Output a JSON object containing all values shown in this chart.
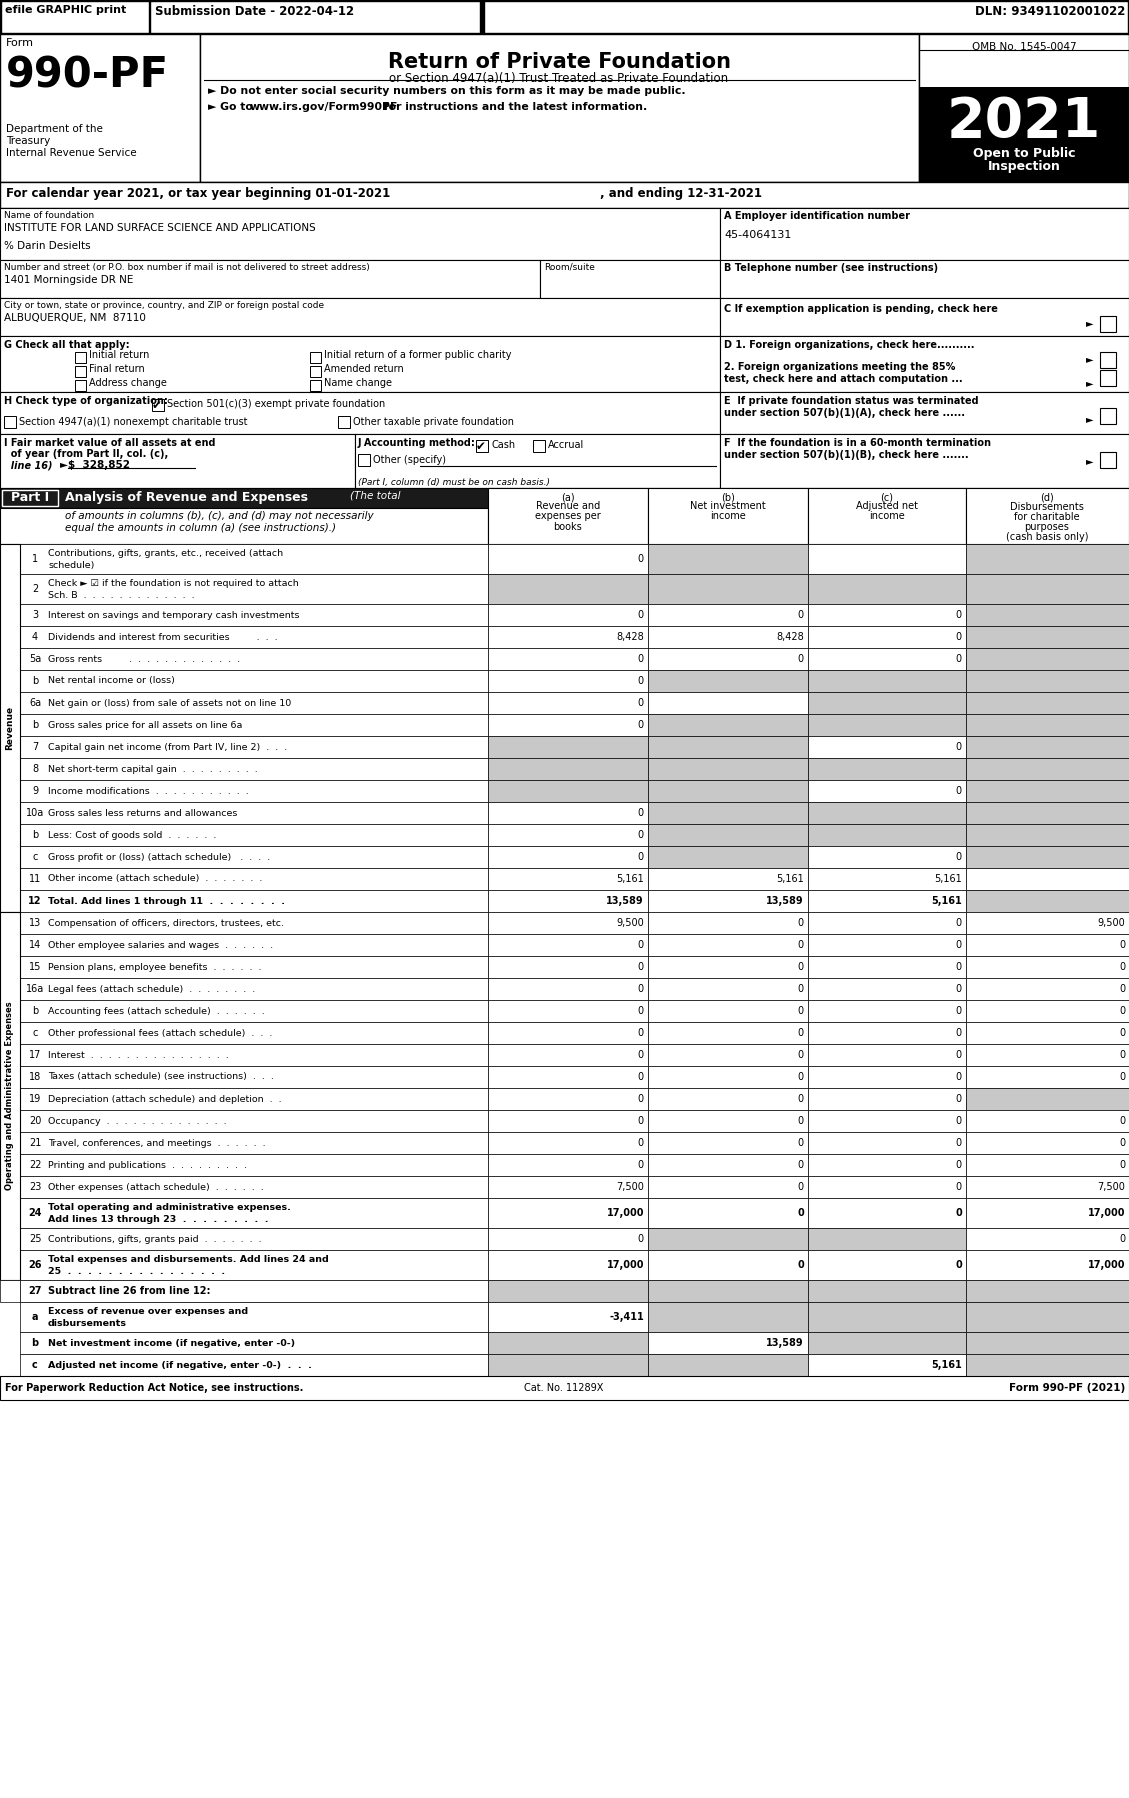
{
  "top_bar": {
    "efile": "efile GRAPHIC print",
    "submission": "Submission Date - 2022-04-12",
    "dln": "DLN: 93491102001022"
  },
  "form_header": {
    "form_label": "Form",
    "form_number": "990-PF",
    "title": "Return of Private Foundation",
    "subtitle": "or Section 4947(a)(1) Trust Treated as Private Foundation",
    "bullet1": "► Do not enter social security numbers on this form as it may be made public.",
    "bullet2_a": "► Go to ",
    "bullet2_url": "www.irs.gov/Form990PF",
    "bullet2_b": " for instructions and the latest information.",
    "dept1": "Department of the",
    "dept2": "Treasury",
    "dept3": "Internal Revenue Service",
    "omb": "OMB No. 1545-0047",
    "year": "2021",
    "open1": "Open to Public",
    "open2": "Inspection"
  },
  "cal_line": "For calendar year 2021, or tax year beginning 01-01-2021",
  "cal_line2": ", and ending 12-31-2021",
  "foundation": {
    "name_lbl": "Name of foundation",
    "name": "INSTITUTE FOR LAND SURFACE SCIENCE AND APPLICATIONS",
    "careof": "% Darin Desielts",
    "addr_lbl": "Number and street (or P.O. box number if mail is not delivered to street address)",
    "addr": "1401 Morningside DR NE",
    "room_lbl": "Room/suite",
    "city_lbl": "City or town, state or province, country, and ZIP or foreign postal code",
    "city": "ALBUQUERQUE, NM  87110",
    "ein_lbl": "A Employer identification number",
    "ein": "45-4064131",
    "phone_lbl": "B Telephone number (see instructions)",
    "c_lbl": "C If exemption application is pending, check here",
    "d1_lbl": "D 1. Foreign organizations, check here..........",
    "d2_lbl1": "2. Foreign organizations meeting the 85%",
    "d2_lbl2": "test, check here and attach computation ...",
    "e_lbl1": "E  If private foundation status was terminated",
    "e_lbl2": "under section 507(b)(1)(A), check here ......",
    "f_lbl1": "F  If the foundation is in a 60-month termination",
    "f_lbl2": "under section 507(b)(1)(B), check here ......."
  },
  "g_label": "G Check all that apply:",
  "g_opts": [
    [
      75,
      "Initial return"
    ],
    [
      310,
      "Initial return of a former public charity"
    ],
    [
      75,
      "Final return"
    ],
    [
      310,
      "Amended return"
    ],
    [
      75,
      "Address change"
    ],
    [
      310,
      "Name change"
    ]
  ],
  "h_label": "H Check type of organization:",
  "h_checked": "Section 501(c)(3) exempt private foundation",
  "h_unc1": "Section 4947(a)(1) nonexempt charitable trust",
  "h_unc2": "Other taxable private foundation",
  "i_lbl1": "I Fair market value of all assets at end",
  "i_lbl2": "  of year (from Part II, col. (c),",
  "i_lbl3": "  line 16)",
  "i_val": "►$  328,852",
  "j_lbl": "J Accounting method:",
  "j_cash": "Cash",
  "j_accrual": "Accrual",
  "j_other": "Other (specify)",
  "j_note": "(Part I, column (d) must be on cash basis.)",
  "part1_title": "Part I",
  "part1_title2": "Analysis of Revenue and Expenses",
  "part1_italic": "(The total",
  "part1_desc1": "of amounts in columns (b), (c), and (d) may not necessarily",
  "part1_desc2": "equal the amounts in column (a) (see instructions).)",
  "col_a_lbl": [
    "(a)",
    "Revenue and",
    "expenses per",
    "books"
  ],
  "col_b_lbl": [
    "(b)",
    "Net investment",
    "income"
  ],
  "col_c_lbl": [
    "(c)",
    "Adjusted net",
    "income"
  ],
  "col_d_lbl": [
    "(d)",
    "Disbursements",
    "for charitable",
    "purposes",
    "(cash basis only)"
  ],
  "rev_rows": [
    {
      "num": "1",
      "label": "Contributions, gifts, grants, etc., received (attach\nschedule)",
      "a": "0",
      "b": "",
      "c": "",
      "d": "",
      "sa": false,
      "sb": true,
      "sc": false,
      "sd": true
    },
    {
      "num": "2",
      "label": "Check ► ☑ if the foundation is not required to attach\nSch. B  .  .  .  .  .  .  .  .  .  .  .  .  .",
      "a": "",
      "b": "",
      "c": "",
      "d": "",
      "sa": true,
      "sb": true,
      "sc": true,
      "sd": true
    },
    {
      "num": "3",
      "label": "Interest on savings and temporary cash investments",
      "a": "0",
      "b": "0",
      "c": "0",
      "d": "",
      "sa": false,
      "sb": false,
      "sc": false,
      "sd": true
    },
    {
      "num": "4",
      "label": "Dividends and interest from securities         .  .  .",
      "a": "8,428",
      "b": "8,428",
      "c": "0",
      "d": "",
      "sa": false,
      "sb": false,
      "sc": false,
      "sd": true
    },
    {
      "num": "5a",
      "label": "Gross rents         .  .  .  .  .  .  .  .  .  .  .  .  .",
      "a": "0",
      "b": "0",
      "c": "0",
      "d": "",
      "sa": false,
      "sb": false,
      "sc": false,
      "sd": true
    },
    {
      "num": "b",
      "label": "Net rental income or (loss)",
      "a": "0",
      "b": "",
      "c": "",
      "d": "",
      "sa": false,
      "sb": true,
      "sc": true,
      "sd": true
    },
    {
      "num": "6a",
      "label": "Net gain or (loss) from sale of assets not on line 10",
      "a": "0",
      "b": "",
      "c": "",
      "d": "",
      "sa": false,
      "sb": false,
      "sc": true,
      "sd": true
    },
    {
      "num": "b",
      "label": "Gross sales price for all assets on line 6a",
      "a": "0",
      "b": "",
      "c": "",
      "d": "",
      "sa": false,
      "sb": true,
      "sc": true,
      "sd": true
    },
    {
      "num": "7",
      "label": "Capital gain net income (from Part IV, line 2)  .  .  .",
      "a": "",
      "b": "",
      "c": "0",
      "d": "",
      "sa": true,
      "sb": true,
      "sc": false,
      "sd": true
    },
    {
      "num": "8",
      "label": "Net short-term capital gain  .  .  .  .  .  .  .  .  .",
      "a": "",
      "b": "",
      "c": "",
      "d": "",
      "sa": true,
      "sb": true,
      "sc": true,
      "sd": true
    },
    {
      "num": "9",
      "label": "Income modifications  .  .  .  .  .  .  .  .  .  .  .",
      "a": "",
      "b": "",
      "c": "0",
      "d": "",
      "sa": true,
      "sb": true,
      "sc": false,
      "sd": true
    },
    {
      "num": "10a",
      "label": "Gross sales less returns and allowances",
      "a": "0",
      "b": "",
      "c": "",
      "d": "",
      "sa": false,
      "sb": true,
      "sc": true,
      "sd": true
    },
    {
      "num": "b",
      "label": "Less: Cost of goods sold  .  .  .  .  .  .",
      "a": "0",
      "b": "",
      "c": "",
      "d": "",
      "sa": false,
      "sb": true,
      "sc": true,
      "sd": true
    },
    {
      "num": "c",
      "label": "Gross profit or (loss) (attach schedule)   .  .  .  .",
      "a": "0",
      "b": "",
      "c": "0",
      "d": "",
      "sa": false,
      "sb": true,
      "sc": false,
      "sd": true
    },
    {
      "num": "11",
      "label": "Other income (attach schedule)  .  .  .  .  .  .  .",
      "a": "5,161",
      "b": "5,161",
      "c": "5,161",
      "d": "",
      "sa": false,
      "sb": false,
      "sc": false,
      "sd": false
    },
    {
      "num": "12",
      "label": "Total. Add lines 1 through 11  .  .  .  .  .  .  .  .",
      "a": "13,589",
      "b": "13,589",
      "c": "5,161",
      "d": "",
      "sa": false,
      "sb": false,
      "sc": false,
      "sd": true,
      "bold": true
    }
  ],
  "exp_rows": [
    {
      "num": "13",
      "label": "Compensation of officers, directors, trustees, etc.",
      "a": "9,500",
      "b": "0",
      "c": "0",
      "d": "9,500",
      "sa": false,
      "sb": false,
      "sc": false,
      "sd": false
    },
    {
      "num": "14",
      "label": "Other employee salaries and wages  .  .  .  .  .  .",
      "a": "0",
      "b": "0",
      "c": "0",
      "d": "0",
      "sa": false,
      "sb": false,
      "sc": false,
      "sd": false
    },
    {
      "num": "15",
      "label": "Pension plans, employee benefits  .  .  .  .  .  .",
      "a": "0",
      "b": "0",
      "c": "0",
      "d": "0",
      "sa": false,
      "sb": false,
      "sc": false,
      "sd": false
    },
    {
      "num": "16a",
      "label": "Legal fees (attach schedule)  .  .  .  .  .  .  .  .",
      "a": "0",
      "b": "0",
      "c": "0",
      "d": "0",
      "sa": false,
      "sb": false,
      "sc": false,
      "sd": false
    },
    {
      "num": "b",
      "label": "Accounting fees (attach schedule)  .  .  .  .  .  .",
      "a": "0",
      "b": "0",
      "c": "0",
      "d": "0",
      "sa": false,
      "sb": false,
      "sc": false,
      "sd": false
    },
    {
      "num": "c",
      "label": "Other professional fees (attach schedule)  .  .  .",
      "a": "0",
      "b": "0",
      "c": "0",
      "d": "0",
      "sa": false,
      "sb": false,
      "sc": false,
      "sd": false
    },
    {
      "num": "17",
      "label": "Interest  .  .  .  .  .  .  .  .  .  .  .  .  .  .  .  .",
      "a": "0",
      "b": "0",
      "c": "0",
      "d": "0",
      "sa": false,
      "sb": false,
      "sc": false,
      "sd": false
    },
    {
      "num": "18",
      "label": "Taxes (attach schedule) (see instructions)  .  .  .",
      "a": "0",
      "b": "0",
      "c": "0",
      "d": "0",
      "sa": false,
      "sb": false,
      "sc": false,
      "sd": false
    },
    {
      "num": "19",
      "label": "Depreciation (attach schedule) and depletion  .  .",
      "a": "0",
      "b": "0",
      "c": "0",
      "d": "",
      "sa": false,
      "sb": false,
      "sc": false,
      "sd": true
    },
    {
      "num": "20",
      "label": "Occupancy  .  .  .  .  .  .  .  .  .  .  .  .  .  .",
      "a": "0",
      "b": "0",
      "c": "0",
      "d": "0",
      "sa": false,
      "sb": false,
      "sc": false,
      "sd": false
    },
    {
      "num": "21",
      "label": "Travel, conferences, and meetings  .  .  .  .  .  .",
      "a": "0",
      "b": "0",
      "c": "0",
      "d": "0",
      "sa": false,
      "sb": false,
      "sc": false,
      "sd": false
    },
    {
      "num": "22",
      "label": "Printing and publications  .  .  .  .  .  .  .  .  .",
      "a": "0",
      "b": "0",
      "c": "0",
      "d": "0",
      "sa": false,
      "sb": false,
      "sc": false,
      "sd": false
    },
    {
      "num": "23",
      "label": "Other expenses (attach schedule)  .  .  .  .  .  .",
      "a": "7,500",
      "b": "0",
      "c": "0",
      "d": "7,500",
      "sa": false,
      "sb": false,
      "sc": false,
      "sd": false,
      "icon": true
    },
    {
      "num": "24",
      "label": "Total operating and administrative expenses.\nAdd lines 13 through 23  .  .  .  .  .  .  .  .  .",
      "a": "17,000",
      "b": "0",
      "c": "0",
      "d": "17,000",
      "sa": false,
      "sb": false,
      "sc": false,
      "sd": false,
      "bold": true
    },
    {
      "num": "25",
      "label": "Contributions, gifts, grants paid  .  .  .  .  .  .  .",
      "a": "0",
      "b": "",
      "c": "",
      "d": "0",
      "sa": false,
      "sb": true,
      "sc": true,
      "sd": false
    },
    {
      "num": "26",
      "label": "Total expenses and disbursements. Add lines 24 and\n25  .  .  .  .  .  .  .  .  .  .  .  .  .  .  .  .",
      "a": "17,000",
      "b": "0",
      "c": "0",
      "d": "17,000",
      "sa": false,
      "sb": false,
      "sc": false,
      "sd": false,
      "bold": true
    }
  ],
  "bot_rows": [
    {
      "num": "27",
      "label": "Subtract line 26 from line 12:",
      "header": true
    },
    {
      "num": "a",
      "label": "Excess of revenue over expenses and\ndisbursements",
      "a": "-3,411",
      "b": "",
      "c": "",
      "d": "",
      "sa": false,
      "sb": true,
      "sc": true,
      "sd": true,
      "bold": true
    },
    {
      "num": "b",
      "label": "Net investment income (if negative, enter -0-)",
      "a": "",
      "b": "13,589",
      "c": "",
      "d": "",
      "sa": true,
      "sb": false,
      "sc": true,
      "sd": true,
      "bold": true
    },
    {
      "num": "c",
      "label": "Adjusted net income (if negative, enter -0-)  .  .  .",
      "a": "",
      "b": "",
      "c": "5,161",
      "d": "",
      "sa": true,
      "sb": true,
      "sc": false,
      "sd": true,
      "bold": true
    }
  ],
  "footer_l": "For Paperwork Reduction Act Notice, see instructions.",
  "footer_c": "Cat. No. 11289X",
  "footer_r": "Form 990-PF (2021)",
  "shaded": "#c8c8c8",
  "white": "#ffffff",
  "black": "#000000"
}
